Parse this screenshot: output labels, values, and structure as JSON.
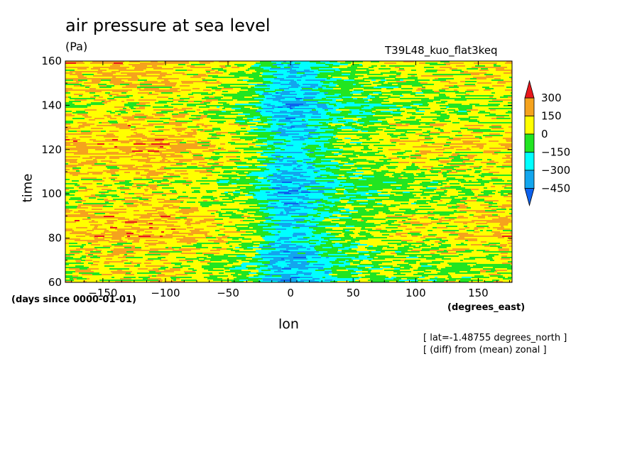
{
  "title": "air pressure at sea level",
  "units": "(Pa)",
  "run_name": "T39L48_kuo_flat3keq",
  "y_axis_title": "time",
  "y_axis_units": "(days since 0000-01-01)",
  "x_axis_title": "lon",
  "x_axis_units": "(degrees_east)",
  "notes": [
    "[ lat=-1.48755 degrees_north ]",
    "[ (diff) from (mean) zonal ]"
  ],
  "colors": {
    "red": "#e8171c",
    "orange": "#f5a31d",
    "yellow": "#ffff00",
    "green": "#21e521",
    "cyan": "#00ffff",
    "lightblue": "#12a6ee",
    "blue": "#0d62ee"
  },
  "chart_data": {
    "type": "heatmap",
    "title": "air pressure at sea level",
    "x": {
      "label": "lon",
      "units": "degrees_east",
      "range": [
        -180,
        177
      ],
      "ticks": [
        -150,
        -100,
        -50,
        0,
        50,
        100,
        150
      ]
    },
    "y": {
      "label": "time",
      "units": "days since 0000-01-01",
      "range": [
        60,
        160
      ],
      "ticks": [
        60,
        80,
        100,
        120,
        140,
        160
      ]
    },
    "colorbar": {
      "levels": [
        -450,
        -300,
        -150,
        0,
        150,
        300
      ],
      "tick_labels": [
        "300",
        "150",
        "0",
        "-150",
        "-300",
        "-450"
      ],
      "extend": "both"
    },
    "zonal_profile": [
      {
        "lon": -180,
        "value": 100
      },
      {
        "lon": -150,
        "value": 120
      },
      {
        "lon": -100,
        "value": 130
      },
      {
        "lon": -60,
        "value": 60
      },
      {
        "lon": -30,
        "value": -40
      },
      {
        "lon": -10,
        "value": -280
      },
      {
        "lon": 0,
        "value": -330
      },
      {
        "lon": 15,
        "value": -250
      },
      {
        "lon": 40,
        "value": -80
      },
      {
        "lon": 80,
        "value": 10
      },
      {
        "lon": 120,
        "value": 40
      },
      {
        "lon": 177,
        "value": 90
      }
    ]
  }
}
